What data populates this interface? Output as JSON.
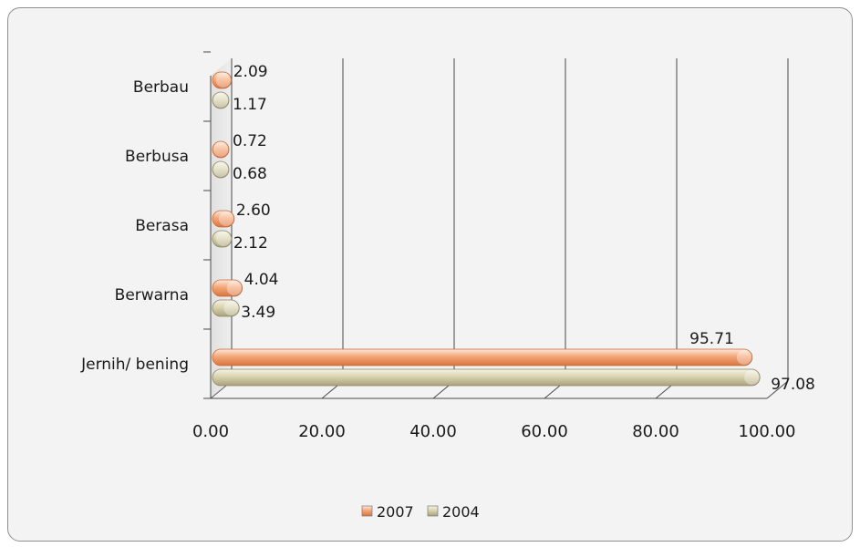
{
  "chart_data": {
    "type": "bar",
    "orientation": "horizontal",
    "categories": [
      "Jernih/ bening",
      "Berwarna",
      "Berasa",
      "Berbusa",
      "Berbau"
    ],
    "series": [
      {
        "name": "2004",
        "values": [
          97.08,
          3.49,
          2.12,
          0.68,
          1.17
        ],
        "color": "#d9d3b0"
      },
      {
        "name": "2007",
        "values": [
          95.71,
          4.04,
          2.6,
          0.72,
          2.09
        ],
        "color": "#f4a777"
      }
    ],
    "value_labels": {
      "2004": [
        "97.08",
        "3.49",
        "2.12",
        "0.68",
        "1.17"
      ],
      "2007": [
        "95.71",
        "4.04",
        "2.60",
        "0.72",
        "2.09"
      ]
    },
    "xticks": [
      "0.00",
      "20.00",
      "40.00",
      "60.00",
      "80.00",
      "100.00"
    ],
    "xlim": [
      0,
      100
    ],
    "title": "",
    "xlabel": "",
    "ylabel": "",
    "grid": true,
    "legend": {
      "position": "bottom",
      "order": [
        "2007",
        "2004"
      ]
    }
  }
}
